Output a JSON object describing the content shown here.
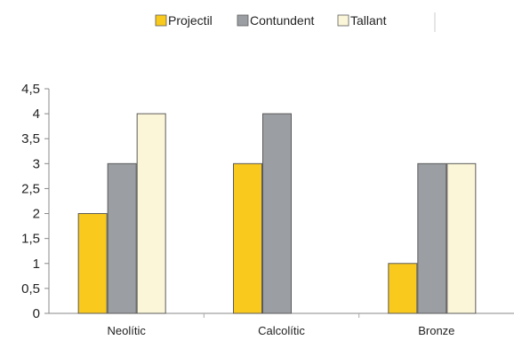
{
  "chart_data": {
    "type": "bar",
    "categories": [
      "Neolític",
      "Calcolític",
      "Bronze"
    ],
    "series": [
      {
        "name": "Projectil",
        "color": "#F9C91E",
        "values": [
          2,
          3,
          1
        ]
      },
      {
        "name": "Contundent",
        "color": "#9B9EA3",
        "values": [
          3,
          4,
          3
        ]
      },
      {
        "name": "Tallant",
        "color": "#FBF6D8",
        "values": [
          4,
          0,
          3
        ]
      }
    ],
    "yticks": [
      "0",
      "0,5",
      "1",
      "1,5",
      "2",
      "2,5",
      "3",
      "3,5",
      "4",
      "4,5"
    ],
    "ylim": [
      0,
      4.5
    ],
    "grid": false,
    "legend_position": "top"
  }
}
